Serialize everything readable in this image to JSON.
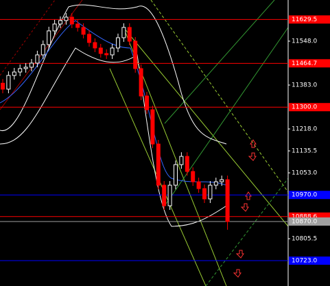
{
  "chart_data": {
    "type": "candlestick",
    "open": [
      11390.0,
      11367.6,
      11419.1,
      11432.0,
      11444.9,
      11450.1,
      11465.5,
      11496.5,
      11535.1,
      11586.7,
      11612.5,
      11625.4,
      11638.3,
      11612.5,
      11599.6,
      11573.8,
      11542.9,
      11522.3,
      11501.6,
      11496.5,
      11522.3,
      11560.9,
      11599.6,
      11548.0,
      11444.9,
      11341.8,
      11290.2,
      11161.3,
      11006.6,
      10929.3,
      11006.6,
      11083.9,
      11114.9,
      11058.2,
      11019.5,
      10993.7,
      10955.1,
      11006.6,
      11019.5,
      11027.3
    ],
    "high": [
      11405.5,
      11434.6,
      11447.5,
      11460.4,
      11465.6,
      11481.0,
      11512.0,
      11550.6,
      11602.2,
      11628.0,
      11640.9,
      11653.8,
      11653.8,
      11628.0,
      11615.1,
      11589.3,
      11558.4,
      11537.8,
      11517.1,
      11537.8,
      11576.4,
      11615.1,
      11615.1,
      11563.5,
      11460.4,
      11357.3,
      11305.7,
      11176.8,
      11022.1,
      11022.1,
      11099.4,
      11130.4,
      11130.4,
      11073.7,
      11035.0,
      11009.2,
      11022.1,
      11035.0,
      11042.8,
      11042.8
    ],
    "low": [
      11352.1,
      11352.1,
      11403.6,
      11416.5,
      11429.4,
      11434.6,
      11450.0,
      11481.0,
      11519.6,
      11571.2,
      11597.0,
      11609.9,
      11597.0,
      11584.1,
      11558.3,
      11527.4,
      11506.8,
      11486.1,
      11481.0,
      11481.0,
      11506.8,
      11545.4,
      11532.5,
      11429.4,
      11326.3,
      11274.7,
      11145.8,
      10991.1,
      10913.8,
      10913.8,
      10991.1,
      11068.4,
      11042.7,
      11004.0,
      10978.2,
      10939.6,
      10939.6,
      10991.1,
      11004.0,
      10839.1
    ],
    "close": [
      11367.6,
      11419.1,
      11432.0,
      11444.9,
      11450.1,
      11465.5,
      11496.5,
      11535.1,
      11586.7,
      11612.5,
      11625.4,
      11638.3,
      11612.5,
      11599.6,
      11573.8,
      11542.9,
      11522.3,
      11501.6,
      11496.5,
      11522.3,
      11560.9,
      11599.6,
      11548.0,
      11444.9,
      11341.8,
      11290.2,
      11161.3,
      11006.6,
      10929.3,
      11006.6,
      11083.9,
      11114.9,
      11058.2,
      11019.5,
      10993.7,
      10955.1,
      11006.6,
      11019.5,
      11027.3,
      10870.0
    ],
    "up_color": "#ffffff",
    "down_color": "#ff0000",
    "ylim": [
      10627.7,
      11702.7
    ],
    "yticks": [
      {
        "value": 11548,
        "label": "11548.0"
      },
      {
        "value": 11383,
        "label": "11383.0"
      },
      {
        "value": 11218,
        "label": "11218.0"
      },
      11135.5,
      {
        "value": 11053,
        "label": "11053.0"
      },
      10805.5
    ],
    "hlines": [
      {
        "value": 11629.5,
        "color": "#ff0000"
      },
      {
        "value": 11464.7,
        "color": "#ff0000"
      },
      {
        "value": 11300,
        "label": "11300.0",
        "color": "#ff0000"
      },
      {
        "value": 10970,
        "label": "10970.0",
        "color": "#0000ff"
      },
      {
        "value": 10888.6,
        "color": "#ff0000"
      },
      {
        "value": 10870,
        "label": "10870.0",
        "color": "#a0a0a0"
      },
      {
        "value": 10723,
        "label": "10723.0",
        "color": "#0000ff"
      }
    ]
  }
}
